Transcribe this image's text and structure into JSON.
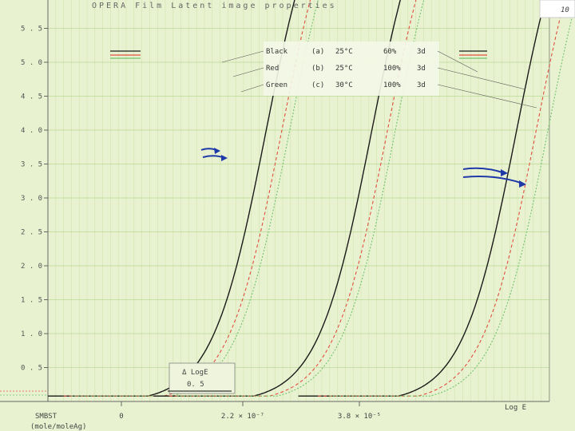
{
  "chart_data": {
    "type": "line",
    "title": "OPERA Film  Latent image properties",
    "ylim": [
      0,
      6
    ],
    "yticks": [
      "0 . 5",
      "1 . 0",
      "1 . 5",
      "2 . 0",
      "2 . 5",
      "3 . 0",
      "3 . 5",
      "4 . 0",
      "4 . 5",
      "5 . 0",
      "5 . 5"
    ],
    "xlabel": "Log E",
    "x_markers": [
      "0",
      "2.2 × 10⁻⁷",
      "3.8 × 10⁻⁵"
    ],
    "x_title_line1": "SMBST",
    "x_title_line2": "(mole/moleAg)",
    "delta_label": "Δ LogE",
    "delta_value": "0. 5",
    "page_mark": "10",
    "legend": [
      {
        "name": "Black",
        "id": "(a)",
        "temp": "25°C",
        "humidity": "60%",
        "days": "3d",
        "color": "#1a1a1a"
      },
      {
        "name": "Red",
        "id": "(b)",
        "temp": "25°C",
        "humidity": "100%",
        "days": "3d",
        "color": "#e05040"
      },
      {
        "name": "Green",
        "id": "(c)",
        "temp": "30°C",
        "humidity": "100%",
        "days": "3d",
        "color": "#6ec46e"
      }
    ],
    "groups": [
      {
        "sensitizer": "0",
        "curves_at_density_4": [
          2.75,
          2.95,
          3.05
        ]
      },
      {
        "sensitizer": "2.2 × 10⁻⁷",
        "curves_at_density_4": [
          4.1,
          4.3,
          4.4
        ]
      },
      {
        "sensitizer": "3.8 × 10⁻⁵",
        "curves_at_density_4": [
          5.95,
          6.2,
          6.35
        ]
      }
    ]
  }
}
